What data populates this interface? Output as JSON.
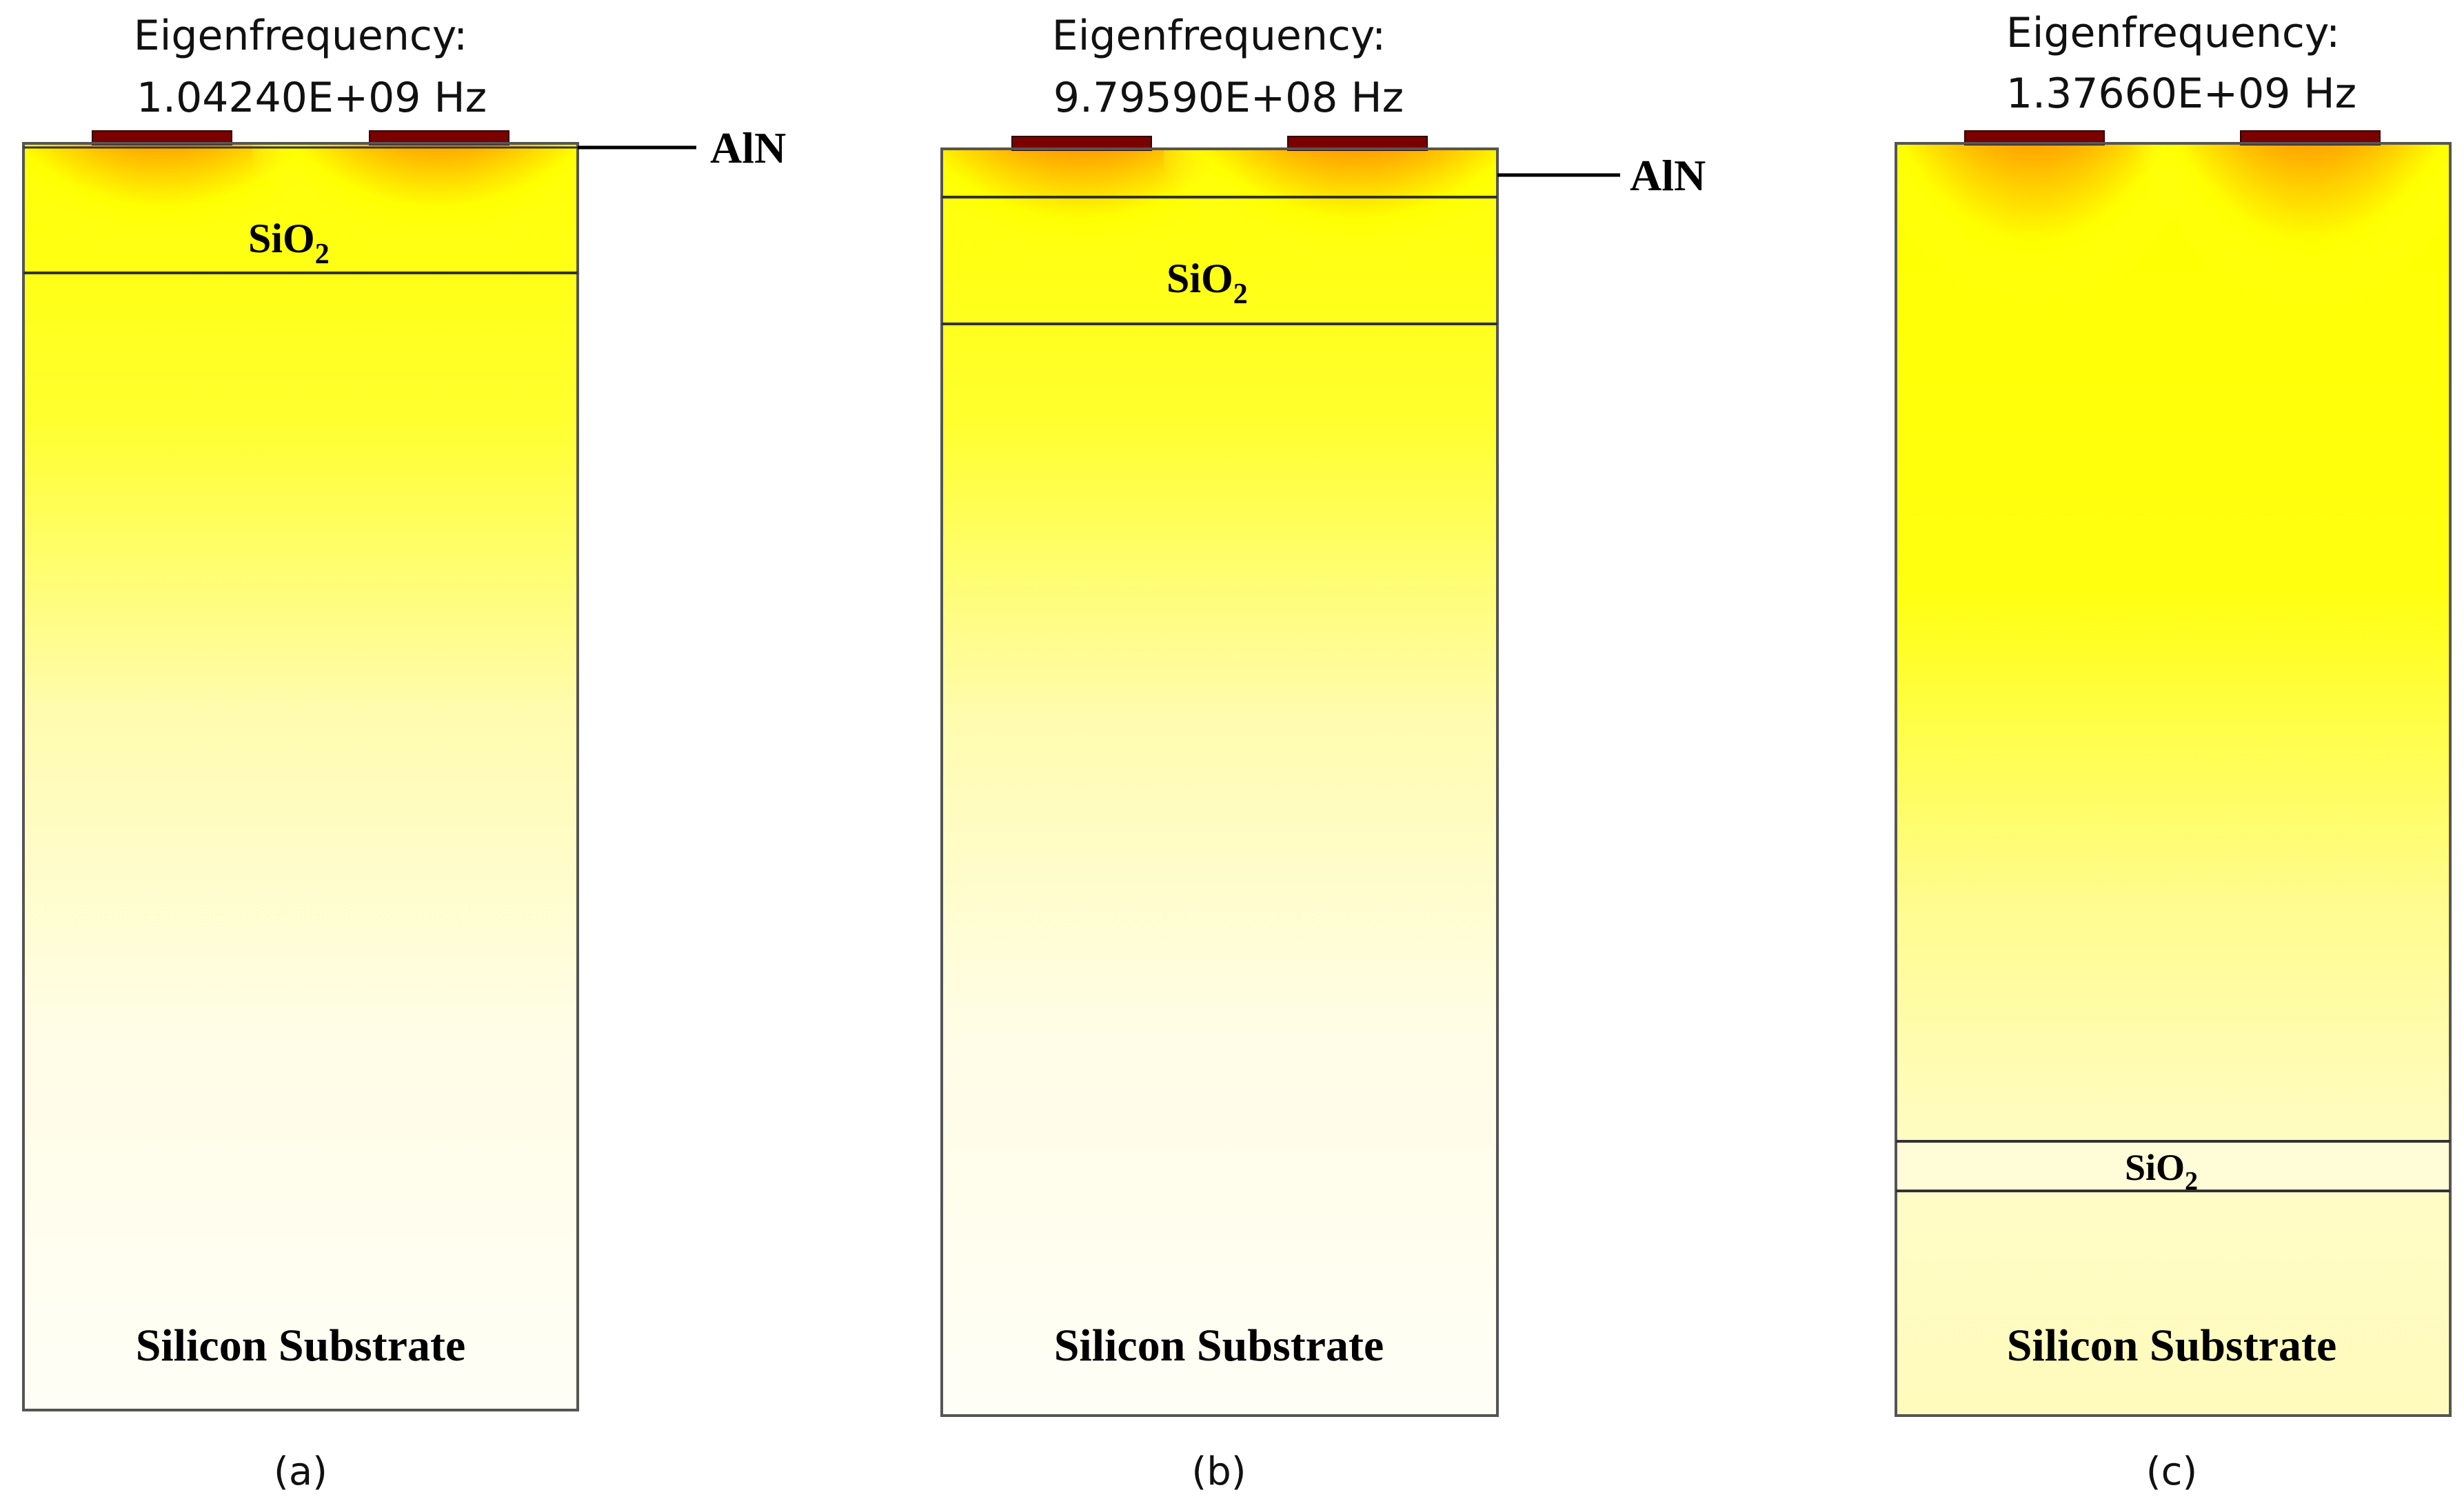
{
  "panels": [
    {
      "caption": "(a)",
      "freq_label": "Eigenfrequency:",
      "freq_value": "1.04240E+09 Hz",
      "aln_label": "AlN",
      "sio2_main": "SiO",
      "sio2_sub": "2",
      "substrate_label": "Silicon Substrate"
    },
    {
      "caption": "(b)",
      "freq_label": "Eigenfrequency:",
      "freq_value": "9.79590E+08 Hz",
      "aln_label": "AlN",
      "sio2_main": "SiO",
      "sio2_sub": "2",
      "substrate_label": "Silicon Substrate"
    },
    {
      "caption": "(c)",
      "freq_label": "Eigenfrequency:",
      "freq_value": "1.37660E+09 Hz",
      "sio2_main": "SiO",
      "sio2_sub": "2",
      "substrate_label": "Silicon Substrate"
    }
  ],
  "colors": {
    "background_field": "#fffef0",
    "yellow": "#ffff00",
    "red": "#ff2200",
    "dark": "#000000",
    "electrode": "#7a0000",
    "outline": "#555555"
  }
}
